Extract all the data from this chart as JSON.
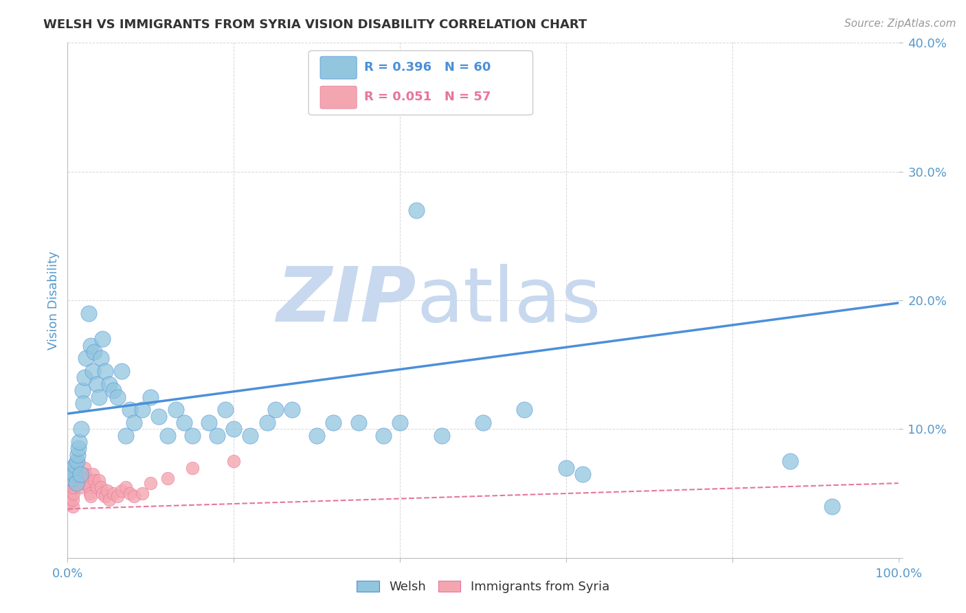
{
  "title": "WELSH VS IMMIGRANTS FROM SYRIA VISION DISABILITY CORRELATION CHART",
  "source_text": "Source: ZipAtlas.com",
  "ylabel": "Vision Disability",
  "xlim": [
    0.0,
    1.0
  ],
  "ylim": [
    0.0,
    0.4
  ],
  "yticks": [
    0.0,
    0.1,
    0.2,
    0.3,
    0.4
  ],
  "xticks": [
    0.0,
    0.2,
    0.4,
    0.6,
    0.8,
    1.0
  ],
  "xtick_labels": [
    "0.0%",
    "",
    "",
    "",
    "",
    "100.0%"
  ],
  "welsh_R": 0.396,
  "welsh_N": 60,
  "syria_R": 0.051,
  "syria_N": 57,
  "welsh_color": "#92C5DE",
  "syria_color": "#F4A6B0",
  "welsh_trend_color": "#4A90D9",
  "syria_trend_color": "#E8749A",
  "background_color": "#FFFFFF",
  "grid_color": "#CCCCCC",
  "watermark_zip": "ZIP",
  "watermark_atlas": "atlas",
  "watermark_color": "#C8D8EE",
  "title_color": "#333333",
  "tick_label_color": "#5599CC",
  "welsh_trend_x": [
    0.0,
    1.0
  ],
  "welsh_trend_y": [
    0.112,
    0.198
  ],
  "syria_trend_x": [
    0.0,
    1.0
  ],
  "syria_trend_y": [
    0.038,
    0.058
  ],
  "welsh_x": [
    0.005,
    0.006,
    0.007,
    0.008,
    0.009,
    0.01,
    0.011,
    0.012,
    0.013,
    0.014,
    0.015,
    0.016,
    0.018,
    0.019,
    0.02,
    0.022,
    0.025,
    0.028,
    0.03,
    0.032,
    0.035,
    0.038,
    0.04,
    0.042,
    0.045,
    0.05,
    0.055,
    0.06,
    0.065,
    0.07,
    0.075,
    0.08,
    0.09,
    0.1,
    0.11,
    0.12,
    0.13,
    0.14,
    0.15,
    0.17,
    0.18,
    0.19,
    0.2,
    0.22,
    0.24,
    0.25,
    0.27,
    0.3,
    0.32,
    0.35,
    0.38,
    0.4,
    0.42,
    0.45,
    0.5,
    0.55,
    0.6,
    0.62,
    0.87,
    0.92
  ],
  "welsh_y": [
    0.062,
    0.068,
    0.07,
    0.065,
    0.072,
    0.058,
    0.075,
    0.08,
    0.085,
    0.09,
    0.065,
    0.1,
    0.13,
    0.12,
    0.14,
    0.155,
    0.19,
    0.165,
    0.145,
    0.16,
    0.135,
    0.125,
    0.155,
    0.17,
    0.145,
    0.135,
    0.13,
    0.125,
    0.145,
    0.095,
    0.115,
    0.105,
    0.115,
    0.125,
    0.11,
    0.095,
    0.115,
    0.105,
    0.095,
    0.105,
    0.095,
    0.115,
    0.1,
    0.095,
    0.105,
    0.115,
    0.115,
    0.095,
    0.105,
    0.105,
    0.095,
    0.105,
    0.27,
    0.095,
    0.105,
    0.115,
    0.07,
    0.065,
    0.075,
    0.04
  ],
  "syria_x": [
    0.002,
    0.003,
    0.003,
    0.004,
    0.004,
    0.005,
    0.005,
    0.006,
    0.006,
    0.007,
    0.007,
    0.008,
    0.008,
    0.009,
    0.009,
    0.01,
    0.01,
    0.011,
    0.011,
    0.012,
    0.013,
    0.013,
    0.014,
    0.015,
    0.016,
    0.017,
    0.018,
    0.019,
    0.02,
    0.021,
    0.022,
    0.023,
    0.024,
    0.025,
    0.026,
    0.027,
    0.028,
    0.03,
    0.032,
    0.035,
    0.038,
    0.04,
    0.042,
    0.045,
    0.048,
    0.05,
    0.055,
    0.06,
    0.065,
    0.07,
    0.075,
    0.08,
    0.09,
    0.1,
    0.12,
    0.15,
    0.2
  ],
  "syria_y": [
    0.042,
    0.045,
    0.05,
    0.048,
    0.055,
    0.058,
    0.052,
    0.04,
    0.045,
    0.05,
    0.055,
    0.06,
    0.065,
    0.07,
    0.068,
    0.062,
    0.058,
    0.065,
    0.07,
    0.075,
    0.065,
    0.06,
    0.058,
    0.055,
    0.06,
    0.065,
    0.062,
    0.058,
    0.07,
    0.065,
    0.06,
    0.062,
    0.058,
    0.06,
    0.055,
    0.05,
    0.048,
    0.065,
    0.06,
    0.055,
    0.06,
    0.055,
    0.05,
    0.048,
    0.052,
    0.045,
    0.05,
    0.048,
    0.052,
    0.055,
    0.05,
    0.048,
    0.05,
    0.058,
    0.062,
    0.07,
    0.075
  ]
}
